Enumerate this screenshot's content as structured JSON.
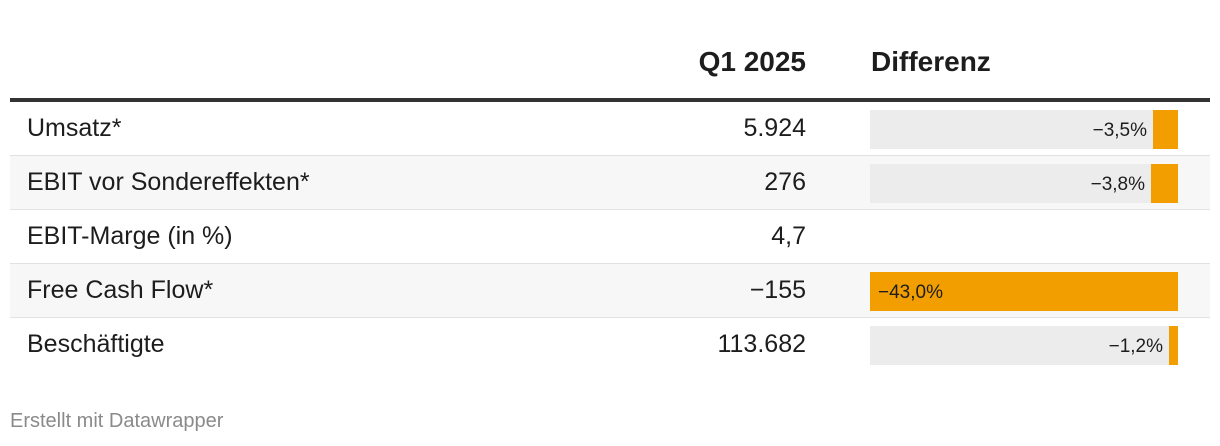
{
  "chart_data": {
    "type": "table",
    "columns": [
      "",
      "Q1 2025",
      "Differenz"
    ],
    "rows": [
      {
        "label": "Umsatz*",
        "value": "5.924",
        "diff_label": "−3,5%",
        "diff": -3.5
      },
      {
        "label": "EBIT vor Sondereffekten*",
        "value": "276",
        "diff_label": "−3,8%",
        "diff": -3.8
      },
      {
        "label": "EBIT-Marge (in %)",
        "value": "4,7",
        "diff_label": "",
        "diff": null
      },
      {
        "label": "Free Cash Flow*",
        "value": "−155",
        "diff_label": "−43,0%",
        "diff": -43.0
      },
      {
        "label": "Beschäftigte",
        "value": "113.682",
        "diff_label": "−1,2%",
        "diff": -1.2
      }
    ],
    "bar_max": 43.0,
    "bar_color": "#f29e00",
    "track_color": "#ececec"
  },
  "footer": "Erstellt mit Datawrapper"
}
